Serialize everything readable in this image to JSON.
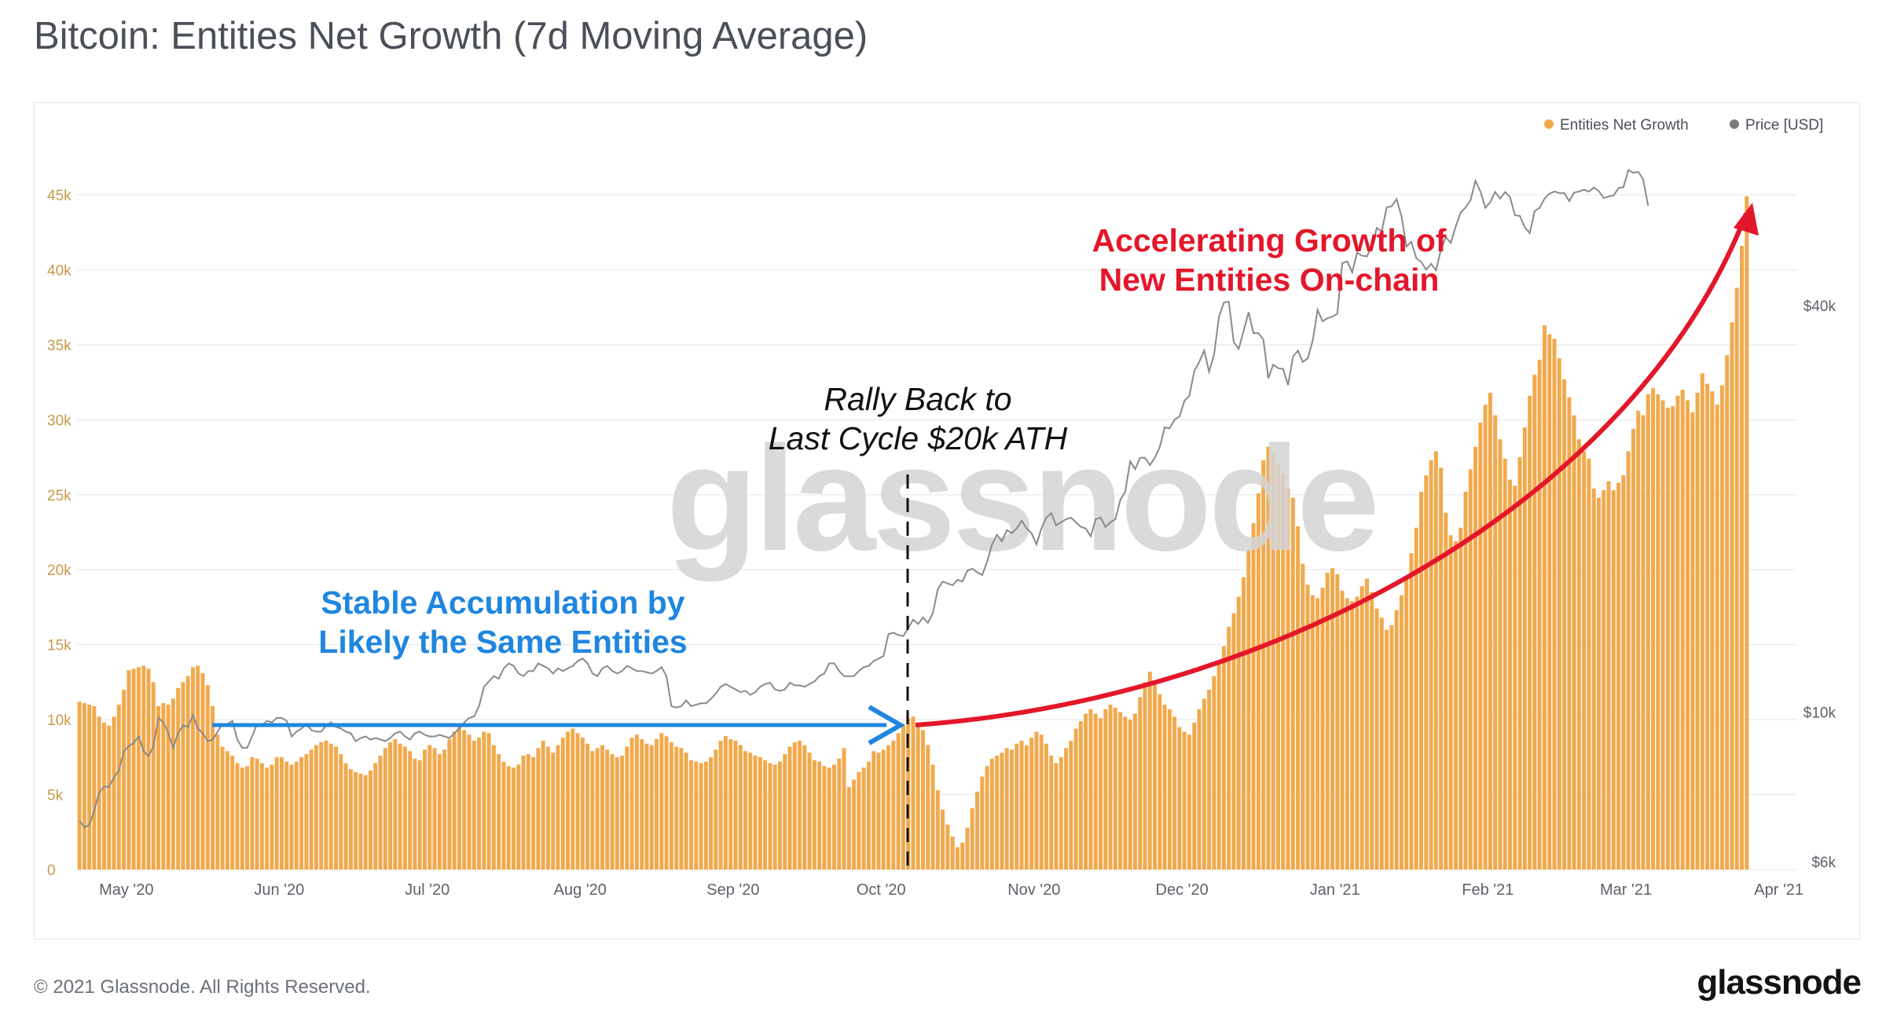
{
  "title": "Bitcoin: Entities Net Growth (7d Moving Average)",
  "footer": {
    "copyright": "© 2021 Glassnode. All Rights Reserved.",
    "logo": "glassnode"
  },
  "watermark": "glassnode",
  "colors": {
    "bars": "#f2a94c",
    "price": "#8a8a8a",
    "blue": "#1f86e0",
    "red": "#e3172a"
  },
  "chart_data": {
    "type": "bar",
    "title": "Bitcoin: Entities Net Growth (7d Moving Average)",
    "legend": {
      "placement": "top-right",
      "entries": [
        "Entities Net Growth",
        "Price [USD]"
      ]
    },
    "grid": true,
    "y_left": {
      "ticks": [
        "0",
        "5k",
        "10k",
        "15k",
        "20k",
        "25k",
        "30k",
        "35k",
        "40k",
        "45k"
      ],
      "range": [
        0,
        45000
      ]
    },
    "y_right": {
      "ticks": [
        "$6k",
        "$10k",
        "$40k"
      ],
      "scale": "log"
    },
    "x_ticks": [
      "May '20",
      "Jun '20",
      "Jul '20",
      "Aug '20",
      "Sep '20",
      "Oct '20",
      "Nov '20",
      "Dec '20",
      "Jan '21",
      "Feb '21",
      "Mar '21",
      "Apr '21"
    ],
    "series": [
      {
        "name": "Entities Net Growth",
        "x_start": "2020-04-21",
        "step": "1 day",
        "values": [
          11200,
          11100,
          11000,
          10900,
          10200,
          9800,
          9600,
          10200,
          11000,
          12000,
          13300,
          13400,
          13500,
          13600,
          13400,
          12500,
          10900,
          11100,
          11000,
          11400,
          12100,
          12500,
          12900,
          13500,
          13600,
          13100,
          12300,
          10900,
          9000,
          8200,
          7900,
          7600,
          7100,
          6800,
          6900,
          7500,
          7400,
          7100,
          6800,
          7000,
          7500,
          7500,
          7200,
          7000,
          7200,
          7500,
          7700,
          8000,
          8300,
          8500,
          8600,
          8400,
          8200,
          7700,
          7100,
          6700,
          6500,
          6400,
          6300,
          6600,
          7100,
          7600,
          8100,
          8500,
          8700,
          8400,
          8200,
          7900,
          7400,
          7300,
          8000,
          8300,
          8100,
          7700,
          8000,
          8700,
          9200,
          9500,
          9300,
          9000,
          8600,
          8800,
          9200,
          9100,
          8300,
          7700,
          7200,
          6900,
          6800,
          7000,
          7600,
          7700,
          7500,
          8100,
          8600,
          8200,
          7800,
          8300,
          8800,
          9200,
          9400,
          9100,
          8800,
          8400,
          7900,
          8100,
          8300,
          8000,
          7700,
          7500,
          7600,
          8200,
          8800,
          9000,
          8700,
          8400,
          8300,
          8700,
          9100,
          8900,
          8500,
          8200,
          8100,
          7800,
          7300,
          7200,
          7100,
          7200,
          7500,
          8000,
          8600,
          8900,
          8700,
          8600,
          8300,
          7900,
          7800,
          7600,
          7500,
          7300,
          7100,
          7000,
          7200,
          7700,
          8200,
          8500,
          8600,
          8300,
          7800,
          7300,
          7200,
          6900,
          6800,
          7000,
          7400,
          8100,
          5500,
          6000,
          6500,
          6800,
          7200,
          7900,
          7800,
          8000,
          8300,
          8600,
          9100,
          9600,
          10100,
          10200,
          9800,
          9300,
          8300,
          7000,
          5300,
          4000,
          3000,
          2200,
          1500,
          1800,
          2800,
          4100,
          5200,
          6200,
          6900,
          7400,
          7600,
          7800,
          8100,
          8000,
          8400,
          8600,
          8300,
          8800,
          9200,
          9000,
          8400,
          7600,
          7100,
          7500,
          8100,
          8600,
          9400,
          9900,
          10400,
          10700,
          10400,
          10100,
          10700,
          11000,
          10800,
          10500,
          10200,
          10000,
          10400,
          11500,
          12500,
          13200,
          12600,
          11700,
          11000,
          10700,
          10200,
          9500,
          9200,
          9000,
          9800,
          10700,
          11400,
          12000,
          12900,
          13700,
          14900,
          16200,
          17100,
          18200,
          19500,
          21300,
          23100,
          25100,
          27300,
          28200,
          27800,
          27000,
          26400,
          25400,
          24800,
          22900,
          20400,
          19000,
          18300,
          18100,
          18800,
          19800,
          20100,
          19700,
          18600,
          18100,
          17900,
          18200,
          18900,
          19400,
          18500,
          17400,
          16800,
          16000,
          16300,
          17300,
          18300,
          19400,
          21100,
          22800,
          25200,
          26300,
          27300,
          27900,
          26800,
          23800,
          22300,
          21900,
          22800,
          25200,
          26700,
          28200,
          29800,
          31000,
          31800,
          30300,
          28700,
          27400,
          26000,
          25600,
          27500,
          29500,
          31600,
          33000,
          34000,
          36300,
          35700,
          35400,
          34100,
          32700,
          31500,
          30300,
          28700,
          27900,
          27400,
          25400,
          24800,
          25300,
          25900,
          25300,
          25800,
          26300,
          27900,
          29400,
          30600,
          30300,
          31700,
          32100,
          31700,
          31300,
          30800,
          30900,
          31600,
          32000,
          31300,
          30500,
          31800,
          33100,
          32400,
          31900,
          31000,
          32300,
          34300,
          36500,
          38800,
          41600,
          44900
        ]
      },
      {
        "name": "Price [USD]",
        "x_start": "2020-04-21",
        "step": "1 day",
        "values": [
          6900,
          6750,
          6800,
          7150,
          7600,
          7750,
          7750,
          8000,
          8200,
          8750,
          8900,
          9000,
          9200,
          8750,
          8600,
          8900,
          9800,
          9650,
          9300,
          8850,
          9300,
          9550,
          9500,
          9900,
          9450,
          9300,
          9050,
          9100,
          9350,
          9600,
          9600,
          9700,
          9100,
          8850,
          8850,
          9200,
          9600,
          9550,
          9700,
          9650,
          9800,
          9800,
          9700,
          9200,
          9350,
          9450,
          9600,
          9400,
          9350,
          9350,
          9550,
          9650,
          9500,
          9450,
          9350,
          9300,
          9050,
          9150,
          9200,
          9100,
          9150,
          9100,
          9050,
          9150,
          9300,
          9350,
          9200,
          9100,
          9300,
          9350,
          9250,
          9200,
          9200,
          9250,
          9200,
          9150,
          9300,
          9450,
          9650,
          9800,
          9850,
          10200,
          10900,
          11100,
          11300,
          11200,
          11600,
          11800,
          11700,
          11400,
          11300,
          11500,
          11500,
          11800,
          11700,
          11600,
          11400,
          11600,
          11500,
          11600,
          11700,
          11900,
          12000,
          11800,
          11400,
          11300,
          11600,
          11700,
          11500,
          11400,
          11500,
          11700,
          11600,
          11500,
          11500,
          11450,
          11400,
          11500,
          11650,
          11300,
          10200,
          10150,
          10200,
          10400,
          10200,
          10250,
          10300,
          10300,
          10450,
          10650,
          10900,
          11000,
          10900,
          10800,
          10700,
          10750,
          10600,
          10700,
          10900,
          11000,
          11050,
          10800,
          10750,
          10800,
          11050,
          10950,
          10950,
          10900,
          11000,
          11100,
          11300,
          11400,
          11800,
          11800,
          11500,
          11300,
          11300,
          11300,
          11500,
          11650,
          11700,
          11900,
          12000,
          12100,
          13050,
          13100,
          13000,
          12950,
          13300,
          13700,
          13500,
          13800,
          13550,
          14000,
          15200,
          15600,
          15500,
          15400,
          15700,
          15600,
          16200,
          16300,
          16100,
          15950,
          16700,
          17700,
          18300,
          17900,
          18600,
          18400,
          18700,
          19200,
          18700,
          18400,
          17700,
          18700,
          19400,
          19700,
          18900,
          19100,
          19300,
          19400,
          19100,
          18800,
          18700,
          18200,
          19300,
          19400,
          18800,
          19100,
          19300,
          20600,
          21200,
          23500,
          22900,
          23800,
          23800,
          23200,
          23800,
          24700,
          26400,
          26300,
          27100,
          27400,
          28900,
          29400,
          32000,
          33000,
          34300,
          31900,
          33800,
          38500,
          40400,
          40500,
          35300,
          34500,
          36700,
          39100,
          36400,
          36400,
          35600,
          31200,
          32700,
          32300,
          32200,
          30500,
          33600,
          34300,
          33000,
          33400,
          35500,
          39400,
          37900,
          38300,
          38500,
          38900,
          46200,
          46500,
          44800,
          47900,
          47400,
          47300,
          49000,
          52100,
          51500,
          55900,
          56100,
          57500,
          54200,
          48900,
          49700,
          47000,
          46400,
          45200,
          46100,
          45100,
          48400,
          50500,
          49500,
          52400,
          54900,
          55900,
          57300,
          61200,
          59000,
          55800,
          56900,
          58900,
          57600,
          58900,
          57900,
          54400,
          54300,
          52200,
          51200,
          55200,
          55800,
          57600,
          58600,
          59000,
          58700,
          58700,
          57100,
          58800,
          59000,
          59400,
          59000,
          59800,
          59100,
          57700,
          58000,
          58200,
          59700,
          59900,
          63500,
          62900,
          63100,
          61500,
          56200
        ],
        "axis": "right"
      }
    ],
    "annotations": {
      "rally": [
        "Rally Back to",
        "Last Cycle $20k ATH"
      ],
      "stable": [
        "Stable Accumulation by",
        "Likely the Same Entities"
      ],
      "accelerating": [
        "Accelerating Growth of",
        "New Entities On-chain"
      ]
    }
  }
}
